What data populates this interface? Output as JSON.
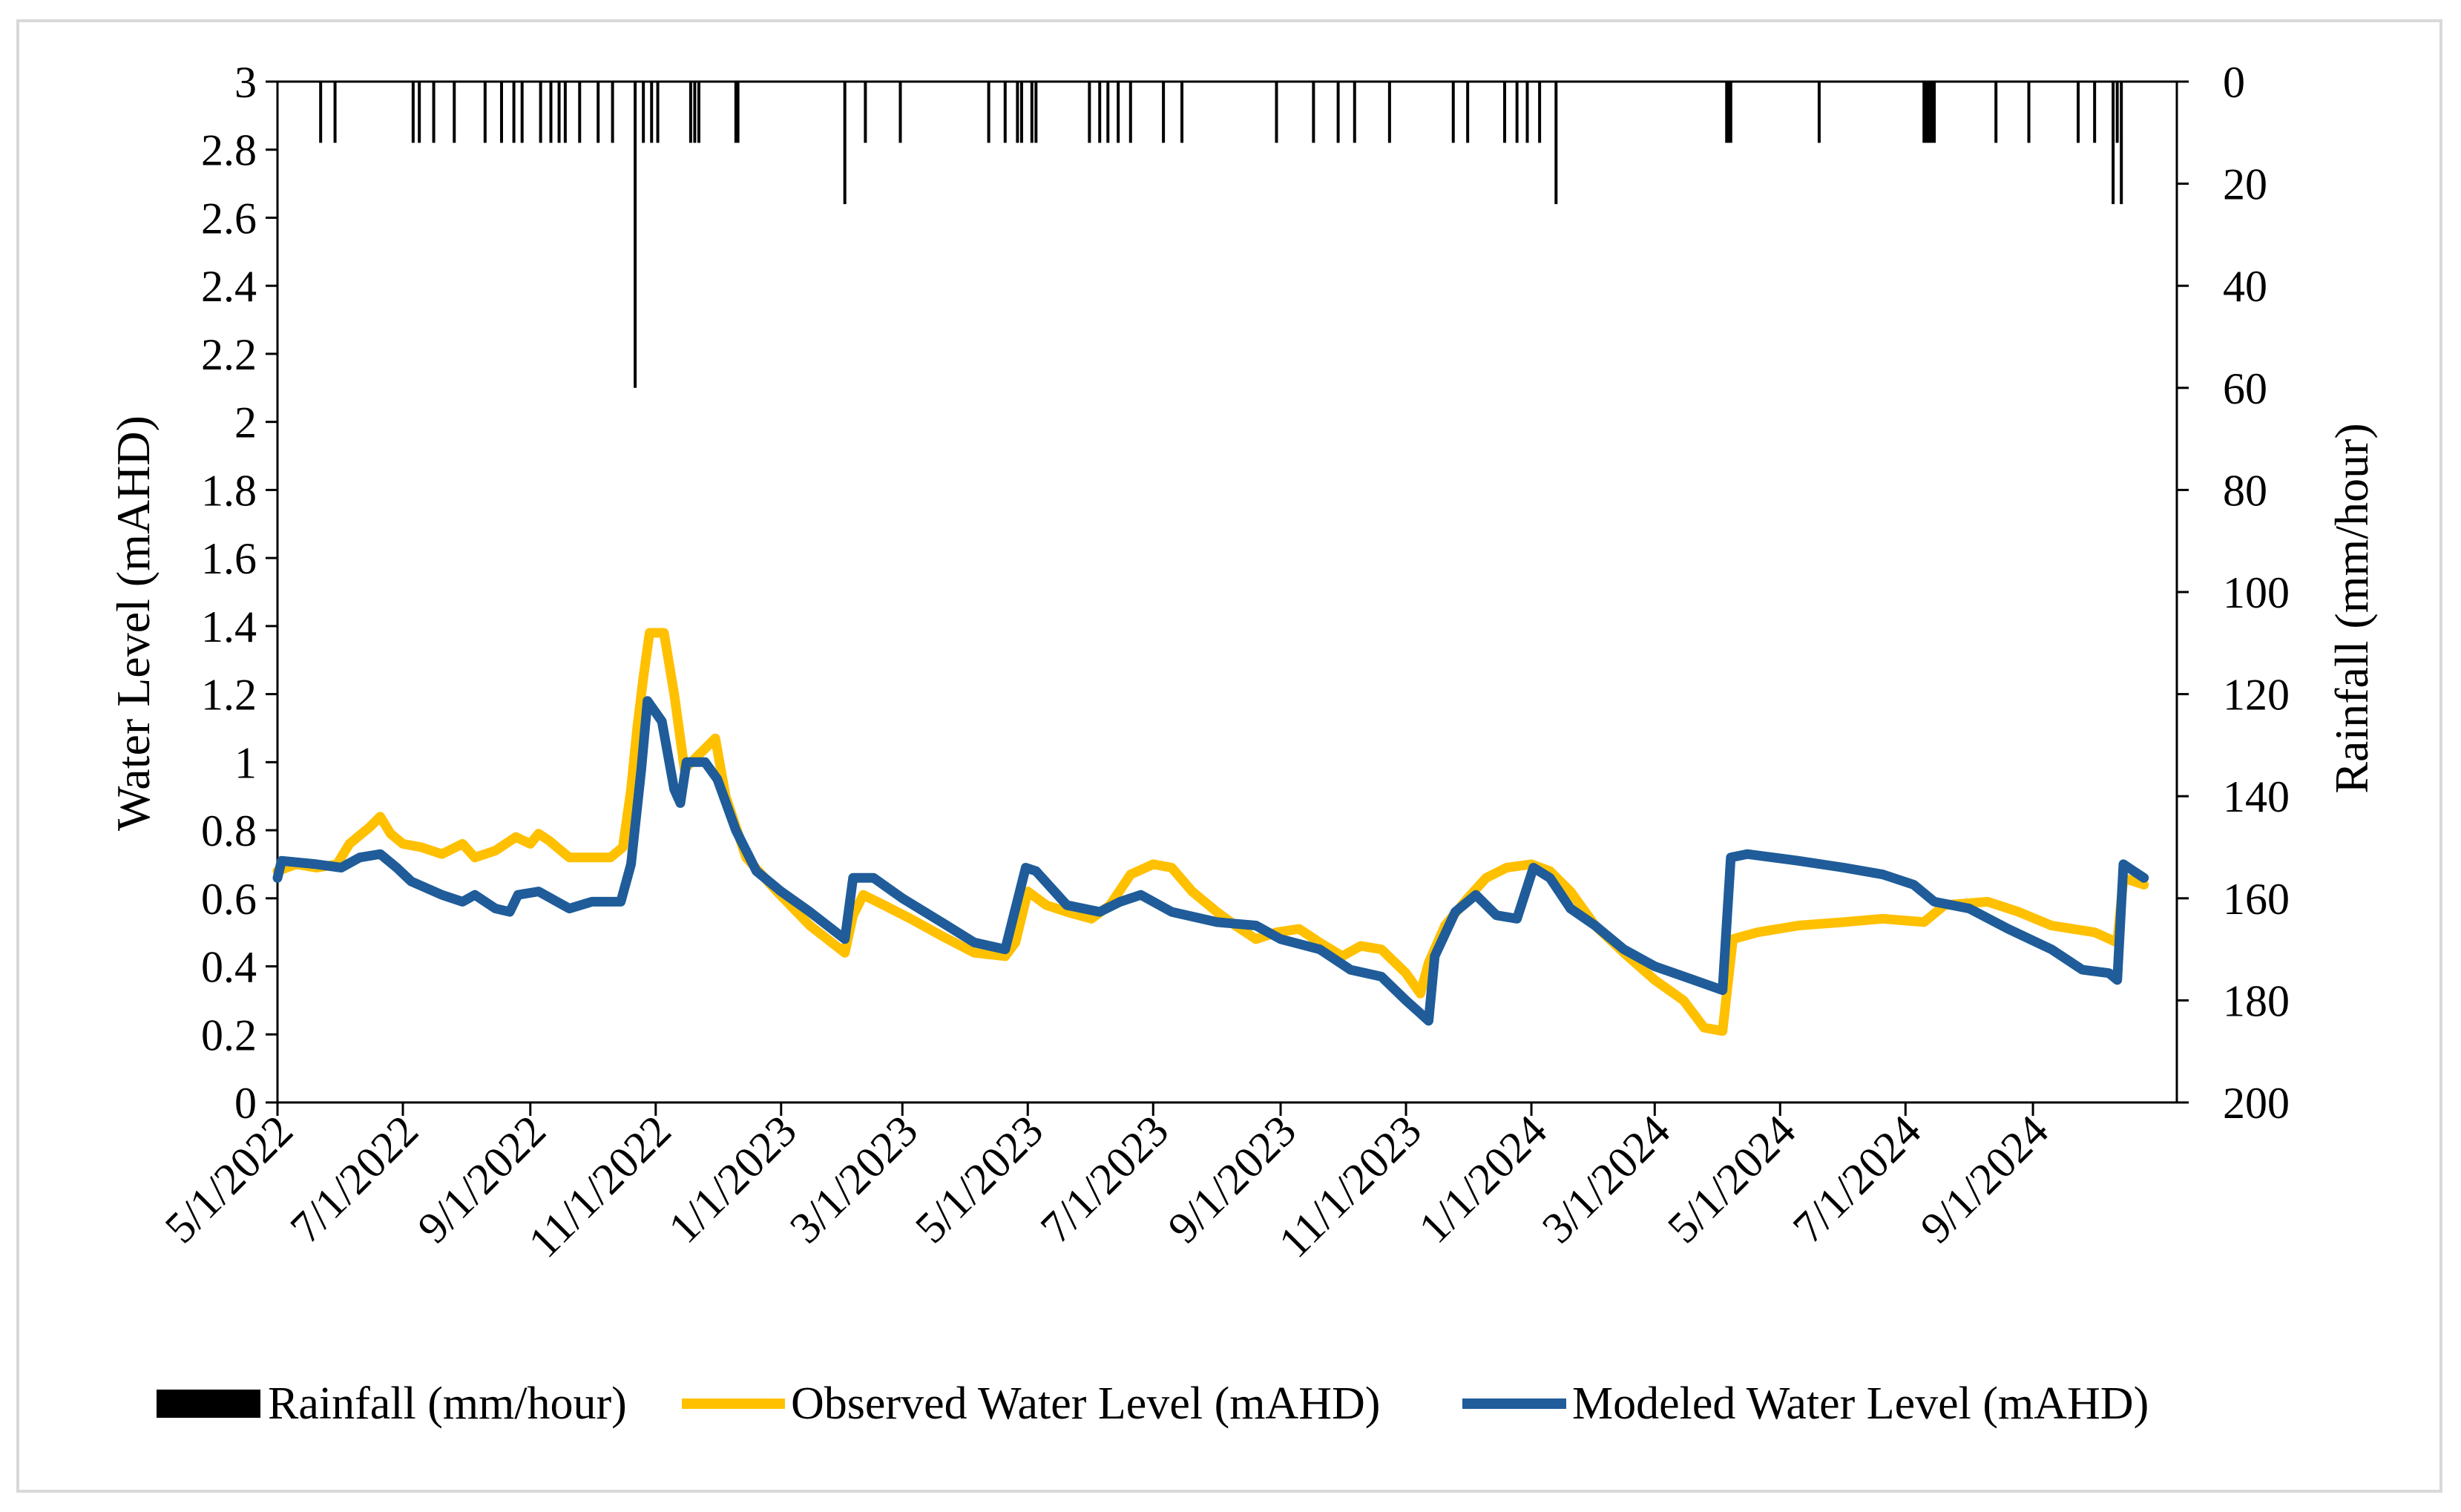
{
  "chart_data": {
    "type": "line",
    "title": "",
    "xlabel": "",
    "ylabel": "Water Level (mAHD)",
    "y2label": "Rainfall (mm/hour)",
    "ylim": [
      0,
      3
    ],
    "y2lim": [
      0,
      200
    ],
    "y2_inverted": true,
    "yticks": [
      "0",
      "0.2",
      "0.4",
      "0.6",
      "0.8",
      "1",
      "1.2",
      "1.4",
      "1.6",
      "1.8",
      "2",
      "2.2",
      "2.4",
      "2.6",
      "2.8",
      "3"
    ],
    "y2ticks": [
      "0",
      "20",
      "40",
      "60",
      "80",
      "100",
      "120",
      "140",
      "160",
      "180",
      "200"
    ],
    "x_start": "2022-05-01",
    "x_end": "2024-11-10",
    "xticks": [
      {
        "date": "2022-05-01",
        "label": "5/1/2022"
      },
      {
        "date": "2022-07-01",
        "label": "7/1/2022"
      },
      {
        "date": "2022-09-01",
        "label": "9/1/2022"
      },
      {
        "date": "2022-11-01",
        "label": "11/1/2022"
      },
      {
        "date": "2023-01-01",
        "label": "1/1/2023"
      },
      {
        "date": "2023-03-01",
        "label": "3/1/2023"
      },
      {
        "date": "2023-05-01",
        "label": "5/1/2023"
      },
      {
        "date": "2023-07-01",
        "label": "7/1/2023"
      },
      {
        "date": "2023-09-01",
        "label": "9/1/2023"
      },
      {
        "date": "2023-11-01",
        "label": "11/1/2023"
      },
      {
        "date": "2024-01-01",
        "label": "1/1/2024"
      },
      {
        "date": "2024-03-01",
        "label": "3/1/2024"
      },
      {
        "date": "2024-05-01",
        "label": "5/1/2024"
      },
      {
        "date": "2024-07-01",
        "label": "7/1/2024"
      },
      {
        "date": "2024-09-01",
        "label": "9/1/2024"
      }
    ],
    "legend_position": "bottom",
    "series": [
      {
        "name": "Rainfall (mm/hour)",
        "kind": "rainfall-bars",
        "color": "#000000",
        "points": [
          {
            "x": "2022-05-22",
            "v": 12
          },
          {
            "x": "2022-05-29",
            "v": 12
          },
          {
            "x": "2022-07-06",
            "v": 12
          },
          {
            "x": "2022-07-09",
            "v": 12
          },
          {
            "x": "2022-07-16",
            "v": 12
          },
          {
            "x": "2022-07-26",
            "v": 12
          },
          {
            "x": "2022-08-10",
            "v": 12
          },
          {
            "x": "2022-08-18",
            "v": 12
          },
          {
            "x": "2022-08-24",
            "v": 12
          },
          {
            "x": "2022-08-28",
            "v": 12
          },
          {
            "x": "2022-09-06",
            "v": 12
          },
          {
            "x": "2022-09-11",
            "v": 12
          },
          {
            "x": "2022-09-15",
            "v": 12
          },
          {
            "x": "2022-09-18",
            "v": 12
          },
          {
            "x": "2022-09-25",
            "v": 12
          },
          {
            "x": "2022-10-04",
            "v": 12
          },
          {
            "x": "2022-10-11",
            "v": 12
          },
          {
            "x": "2022-10-22",
            "v": 60
          },
          {
            "x": "2022-10-26",
            "v": 12
          },
          {
            "x": "2022-10-30",
            "v": 12
          },
          {
            "x": "2022-11-02",
            "v": 12
          },
          {
            "x": "2022-11-18",
            "v": 12
          },
          {
            "x": "2022-11-20",
            "v": 12
          },
          {
            "x": "2022-11-22",
            "v": 12
          },
          {
            "x": "2022-12-10",
            "v": 12
          },
          {
            "x": "2022-12-11",
            "v": 12
          },
          {
            "x": "2023-02-01",
            "v": 24
          },
          {
            "x": "2023-02-11",
            "v": 12
          },
          {
            "x": "2023-02-28",
            "v": 12
          },
          {
            "x": "2023-04-12",
            "v": 12
          },
          {
            "x": "2023-04-20",
            "v": 12
          },
          {
            "x": "2023-04-26",
            "v": 12
          },
          {
            "x": "2023-04-28",
            "v": 12
          },
          {
            "x": "2023-05-03",
            "v": 12
          },
          {
            "x": "2023-05-05",
            "v": 12
          },
          {
            "x": "2023-05-31",
            "v": 12
          },
          {
            "x": "2023-06-05",
            "v": 12
          },
          {
            "x": "2023-06-09",
            "v": 12
          },
          {
            "x": "2023-06-14",
            "v": 12
          },
          {
            "x": "2023-06-20",
            "v": 12
          },
          {
            "x": "2023-07-06",
            "v": 12
          },
          {
            "x": "2023-07-15",
            "v": 12
          },
          {
            "x": "2023-08-30",
            "v": 12
          },
          {
            "x": "2023-09-17",
            "v": 12
          },
          {
            "x": "2023-09-29",
            "v": 12
          },
          {
            "x": "2023-10-07",
            "v": 12
          },
          {
            "x": "2023-10-24",
            "v": 12
          },
          {
            "x": "2023-11-24",
            "v": 12
          },
          {
            "x": "2023-12-01",
            "v": 12
          },
          {
            "x": "2023-12-19",
            "v": 12
          },
          {
            "x": "2023-12-25",
            "v": 12
          },
          {
            "x": "2023-12-30",
            "v": 12
          },
          {
            "x": "2024-01-05",
            "v": 12
          },
          {
            "x": "2024-01-13",
            "v": 24
          },
          {
            "x": "2024-04-05",
            "v": 12
          },
          {
            "x": "2024-04-06",
            "v": 12
          },
          {
            "x": "2024-04-07",
            "v": 12
          },
          {
            "x": "2024-05-20",
            "v": 12
          },
          {
            "x": "2024-07-10",
            "v": 12
          },
          {
            "x": "2024-07-11",
            "v": 12
          },
          {
            "x": "2024-07-12",
            "v": 12
          },
          {
            "x": "2024-07-13",
            "v": 12
          },
          {
            "x": "2024-07-14",
            "v": 12
          },
          {
            "x": "2024-07-15",
            "v": 12
          },
          {
            "x": "2024-08-14",
            "v": 12
          },
          {
            "x": "2024-08-30",
            "v": 12
          },
          {
            "x": "2024-09-23",
            "v": 12
          },
          {
            "x": "2024-10-01",
            "v": 12
          },
          {
            "x": "2024-10-10",
            "v": 24
          },
          {
            "x": "2024-10-12",
            "v": 12
          },
          {
            "x": "2024-10-14",
            "v": 24
          }
        ]
      },
      {
        "name": "Observed Water Level (mAHD)",
        "kind": "line",
        "axis": "left",
        "color": "#FFC000",
        "points": [
          [
            "2022-05-01",
            0.68
          ],
          [
            "2022-05-10",
            0.7
          ],
          [
            "2022-05-20",
            0.69
          ],
          [
            "2022-05-30",
            0.7
          ],
          [
            "2022-06-05",
            0.76
          ],
          [
            "2022-06-15",
            0.81
          ],
          [
            "2022-06-20",
            0.84
          ],
          [
            "2022-06-25",
            0.79
          ],
          [
            "2022-07-01",
            0.76
          ],
          [
            "2022-07-10",
            0.75
          ],
          [
            "2022-07-20",
            0.73
          ],
          [
            "2022-07-30",
            0.76
          ],
          [
            "2022-08-05",
            0.72
          ],
          [
            "2022-08-15",
            0.74
          ],
          [
            "2022-08-25",
            0.78
          ],
          [
            "2022-09-01",
            0.76
          ],
          [
            "2022-09-05",
            0.79
          ],
          [
            "2022-09-10",
            0.77
          ],
          [
            "2022-09-20",
            0.72
          ],
          [
            "2022-10-01",
            0.72
          ],
          [
            "2022-10-10",
            0.72
          ],
          [
            "2022-10-16",
            0.75
          ],
          [
            "2022-10-20",
            0.92
          ],
          [
            "2022-10-23",
            1.1
          ],
          [
            "2022-10-26",
            1.25
          ],
          [
            "2022-10-29",
            1.38
          ],
          [
            "2022-11-05",
            1.38
          ],
          [
            "2022-11-10",
            1.2
          ],
          [
            "2022-11-15",
            0.98
          ],
          [
            "2022-11-25",
            1.04
          ],
          [
            "2022-11-30",
            1.07
          ],
          [
            "2022-12-05",
            0.9
          ],
          [
            "2022-12-15",
            0.72
          ],
          [
            "2022-12-30",
            0.62
          ],
          [
            "2023-01-15",
            0.52
          ],
          [
            "2023-02-01",
            0.44
          ],
          [
            "2023-02-05",
            0.55
          ],
          [
            "2023-02-10",
            0.61
          ],
          [
            "2023-02-20",
            0.58
          ],
          [
            "2023-03-05",
            0.54
          ],
          [
            "2023-03-20",
            0.49
          ],
          [
            "2023-04-05",
            0.44
          ],
          [
            "2023-04-20",
            0.43
          ],
          [
            "2023-04-25",
            0.47
          ],
          [
            "2023-05-01",
            0.62
          ],
          [
            "2023-05-10",
            0.58
          ],
          [
            "2023-05-20",
            0.56
          ],
          [
            "2023-06-01",
            0.54
          ],
          [
            "2023-06-10",
            0.58
          ],
          [
            "2023-06-20",
            0.67
          ],
          [
            "2023-07-01",
            0.7
          ],
          [
            "2023-07-10",
            0.69
          ],
          [
            "2023-07-20",
            0.62
          ],
          [
            "2023-08-01",
            0.56
          ],
          [
            "2023-08-10",
            0.52
          ],
          [
            "2023-08-20",
            0.48
          ],
          [
            "2023-08-30",
            0.5
          ],
          [
            "2023-09-10",
            0.51
          ],
          [
            "2023-09-20",
            0.47
          ],
          [
            "2023-10-01",
            0.43
          ],
          [
            "2023-10-10",
            0.46
          ],
          [
            "2023-10-20",
            0.45
          ],
          [
            "2023-11-01",
            0.38
          ],
          [
            "2023-11-08",
            0.32
          ],
          [
            "2023-11-12",
            0.41
          ],
          [
            "2023-11-20",
            0.52
          ],
          [
            "2023-12-01",
            0.6
          ],
          [
            "2023-12-10",
            0.66
          ],
          [
            "2023-12-20",
            0.69
          ],
          [
            "2024-01-01",
            0.7
          ],
          [
            "2024-01-10",
            0.68
          ],
          [
            "2024-01-20",
            0.62
          ],
          [
            "2024-02-01",
            0.52
          ],
          [
            "2024-02-15",
            0.44
          ],
          [
            "2024-03-01",
            0.36
          ],
          [
            "2024-03-15",
            0.3
          ],
          [
            "2024-03-25",
            0.22
          ],
          [
            "2024-04-03",
            0.21
          ],
          [
            "2024-04-08",
            0.48
          ],
          [
            "2024-04-20",
            0.5
          ],
          [
            "2024-05-10",
            0.52
          ],
          [
            "2024-06-01",
            0.53
          ],
          [
            "2024-06-20",
            0.54
          ],
          [
            "2024-07-10",
            0.53
          ],
          [
            "2024-07-20",
            0.58
          ],
          [
            "2024-08-10",
            0.59
          ],
          [
            "2024-08-25",
            0.56
          ],
          [
            "2024-09-10",
            0.52
          ],
          [
            "2024-10-01",
            0.5
          ],
          [
            "2024-10-12",
            0.47
          ],
          [
            "2024-10-15",
            0.66
          ],
          [
            "2024-10-25",
            0.64
          ]
        ]
      },
      {
        "name": "Modeled Water Level (mAHD)",
        "kind": "line",
        "axis": "left",
        "color": "#1F5C99",
        "points": [
          [
            "2022-05-01",
            0.66
          ],
          [
            "2022-05-03",
            0.71
          ],
          [
            "2022-05-20",
            0.7
          ],
          [
            "2022-06-01",
            0.69
          ],
          [
            "2022-06-10",
            0.72
          ],
          [
            "2022-06-20",
            0.73
          ],
          [
            "2022-06-28",
            0.69
          ],
          [
            "2022-07-05",
            0.65
          ],
          [
            "2022-07-20",
            0.61
          ],
          [
            "2022-07-30",
            0.59
          ],
          [
            "2022-08-05",
            0.61
          ],
          [
            "2022-08-15",
            0.57
          ],
          [
            "2022-08-22",
            0.56
          ],
          [
            "2022-08-26",
            0.61
          ],
          [
            "2022-09-05",
            0.62
          ],
          [
            "2022-09-20",
            0.57
          ],
          [
            "2022-10-01",
            0.59
          ],
          [
            "2022-10-15",
            0.59
          ],
          [
            "2022-10-20",
            0.7
          ],
          [
            "2022-10-25",
            0.98
          ],
          [
            "2022-10-28",
            1.18
          ],
          [
            "2022-11-04",
            1.12
          ],
          [
            "2022-11-10",
            0.92
          ],
          [
            "2022-11-13",
            0.88
          ],
          [
            "2022-11-16",
            1.0
          ],
          [
            "2022-11-25",
            1.0
          ],
          [
            "2022-12-01",
            0.95
          ],
          [
            "2022-12-10",
            0.8
          ],
          [
            "2022-12-20",
            0.68
          ],
          [
            "2023-01-01",
            0.62
          ],
          [
            "2023-01-15",
            0.56
          ],
          [
            "2023-02-01",
            0.48
          ],
          [
            "2023-02-05",
            0.66
          ],
          [
            "2023-02-15",
            0.66
          ],
          [
            "2023-03-01",
            0.6
          ],
          [
            "2023-03-20",
            0.53
          ],
          [
            "2023-04-05",
            0.47
          ],
          [
            "2023-04-20",
            0.45
          ],
          [
            "2023-04-30",
            0.69
          ],
          [
            "2023-05-05",
            0.68
          ],
          [
            "2023-05-20",
            0.58
          ],
          [
            "2023-06-05",
            0.56
          ],
          [
            "2023-06-15",
            0.59
          ],
          [
            "2023-06-25",
            0.61
          ],
          [
            "2023-07-10",
            0.56
          ],
          [
            "2023-08-01",
            0.53
          ],
          [
            "2023-08-20",
            0.52
          ],
          [
            "2023-09-01",
            0.48
          ],
          [
            "2023-09-20",
            0.45
          ],
          [
            "2023-10-05",
            0.39
          ],
          [
            "2023-10-20",
            0.37
          ],
          [
            "2023-11-01",
            0.3
          ],
          [
            "2023-11-12",
            0.24
          ],
          [
            "2023-11-15",
            0.43
          ],
          [
            "2023-11-25",
            0.56
          ],
          [
            "2023-12-05",
            0.61
          ],
          [
            "2023-12-15",
            0.55
          ],
          [
            "2023-12-25",
            0.54
          ],
          [
            "2024-01-02",
            0.69
          ],
          [
            "2024-01-10",
            0.66
          ],
          [
            "2024-01-20",
            0.57
          ],
          [
            "2024-02-01",
            0.52
          ],
          [
            "2024-02-15",
            0.45
          ],
          [
            "2024-03-01",
            0.4
          ],
          [
            "2024-03-20",
            0.36
          ],
          [
            "2024-04-03",
            0.33
          ],
          [
            "2024-04-07",
            0.72
          ],
          [
            "2024-04-15",
            0.73
          ],
          [
            "2024-05-10",
            0.71
          ],
          [
            "2024-06-01",
            0.69
          ],
          [
            "2024-06-20",
            0.67
          ],
          [
            "2024-07-05",
            0.64
          ],
          [
            "2024-07-15",
            0.59
          ],
          [
            "2024-08-01",
            0.57
          ],
          [
            "2024-08-20",
            0.51
          ],
          [
            "2024-09-10",
            0.45
          ],
          [
            "2024-09-25",
            0.39
          ],
          [
            "2024-10-08",
            0.38
          ],
          [
            "2024-10-12",
            0.36
          ],
          [
            "2024-10-15",
            0.7
          ],
          [
            "2024-10-20",
            0.68
          ],
          [
            "2024-10-25",
            0.66
          ]
        ]
      }
    ]
  }
}
